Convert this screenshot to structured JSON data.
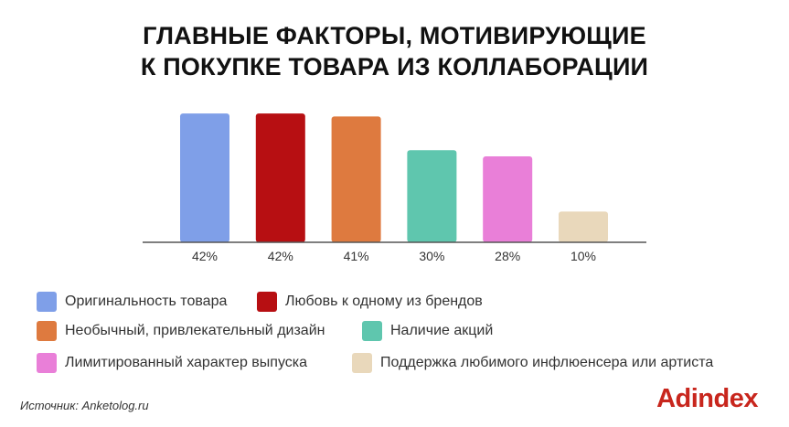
{
  "title_line1": "ГЛАВНЫЕ ФАКТОРЫ, МОТИВИРУЮЩИЕ",
  "title_line2": "К ПОКУПКЕ ТОВАРА ИЗ КОЛЛАБОРАЦИИ",
  "chart_data": {
    "type": "bar",
    "categories": [
      "Оригинальность товара",
      "Любовь к одному из брендов",
      "Необычный, привлекательный дизайн",
      "Наличие акций",
      "Лимитированный характер выпуска",
      "Поддержка любимого инфлюенсера или артиста"
    ],
    "values": [
      42,
      42,
      41,
      30,
      28,
      10
    ],
    "value_labels": [
      "42%",
      "42%",
      "41%",
      "30%",
      "28%",
      "10%"
    ],
    "colors": [
      "#7f9fe8",
      "#b70f12",
      "#de7a3f",
      "#5fc6ae",
      "#e97fd8",
      "#e9d8bb"
    ],
    "ylim": [
      0,
      45
    ],
    "grid": false,
    "legend_position": "bottom"
  },
  "legend": [
    {
      "label": "Оригинальность товара",
      "color": "#7f9fe8"
    },
    {
      "label": "Любовь к одному из брендов",
      "color": "#b70f12"
    },
    {
      "label": "Необычный, привлекательный дизайн",
      "color": "#de7a3f"
    },
    {
      "label": "Наличие акций",
      "color": "#5fc6ae"
    },
    {
      "label": "Лимитированный характер выпуска",
      "color": "#e97fd8"
    },
    {
      "label": "Поддержка любимого инфлюенсера или артиста",
      "color": "#e9d8bb"
    }
  ],
  "source": "Источник: Anketolog.ru",
  "logo": "Adindex"
}
